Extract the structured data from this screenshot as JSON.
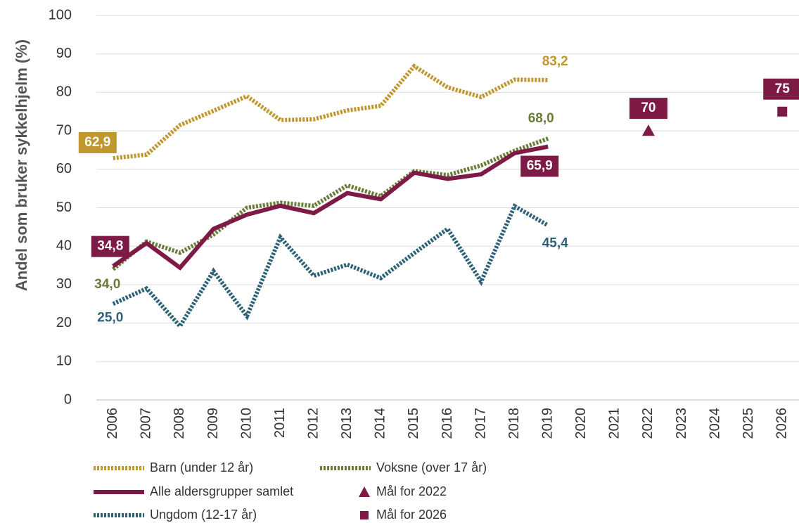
{
  "chart_data": {
    "type": "line",
    "y_label": "Andel som bruker sykkelhjelm (%)",
    "categories": [
      "2006",
      "2007",
      "2008",
      "2009",
      "2010",
      "2011",
      "2012",
      "2013",
      "2014",
      "2015",
      "2016",
      "2017",
      "2018",
      "2019",
      "2020",
      "2021",
      "2022",
      "2023",
      "2024",
      "2025",
      "2026"
    ],
    "ylim": [
      0,
      100
    ],
    "yticks": [
      0,
      10,
      20,
      30,
      40,
      50,
      60,
      70,
      80,
      90,
      100
    ],
    "grid": true,
    "series": [
      {
        "name": "Barn (under 12 år)",
        "color": "#c0962e",
        "style": "dotted",
        "values": [
          62.9,
          63.8,
          71.5,
          75.2,
          79,
          72.8,
          73,
          75.3,
          76.5,
          86.8,
          81.3,
          78.8,
          83.3,
          83.2,
          null,
          null,
          null,
          null,
          null,
          null,
          null
        ],
        "value_labels": [
          "62,9",
          null,
          null,
          null,
          null,
          null,
          null,
          null,
          null,
          null,
          null,
          null,
          null,
          "83,2",
          null,
          null,
          null,
          null,
          null,
          null,
          null
        ]
      },
      {
        "name": "Voksne (over 17 år)",
        "color": "#6b7c3a",
        "style": "dotted",
        "values": [
          34.0,
          41.2,
          38.3,
          43,
          50,
          51.3,
          50.5,
          55.8,
          53,
          59.5,
          58.5,
          61,
          64.8,
          68.0,
          null,
          null,
          null,
          null,
          null,
          null,
          null
        ],
        "value_labels": [
          "34,0",
          null,
          null,
          null,
          null,
          null,
          null,
          null,
          null,
          null,
          null,
          null,
          null,
          "68,0",
          null,
          null,
          null,
          null,
          null,
          null,
          null
        ]
      },
      {
        "name": "Alle aldersgrupper samlet",
        "color": "#7d1a45",
        "style": "solid",
        "values": [
          34.8,
          40.8,
          34.4,
          44.5,
          48.2,
          50.5,
          48.6,
          53.8,
          52.2,
          59.1,
          57.5,
          58.7,
          64.2,
          65.9,
          null,
          null,
          null,
          null,
          null,
          null,
          null
        ],
        "value_labels": [
          "34,8",
          null,
          null,
          null,
          null,
          null,
          null,
          null,
          null,
          null,
          null,
          null,
          null,
          "65,9",
          null,
          null,
          null,
          null,
          null,
          null,
          null
        ]
      },
      {
        "name": "Mål for 2022",
        "color": "#7d1a45",
        "marker": "triangle",
        "values": [
          null,
          null,
          null,
          null,
          null,
          null,
          null,
          null,
          null,
          null,
          null,
          null,
          null,
          null,
          null,
          null,
          70,
          null,
          null,
          null,
          null
        ]
      },
      {
        "name": "Ungdom (12-17 år)",
        "color": "#2c6277",
        "style": "dotted",
        "values": [
          25.0,
          29,
          19.2,
          33.5,
          21.8,
          42.3,
          32.3,
          35.2,
          31.7,
          38.2,
          44.5,
          30.8,
          50.4,
          45.4,
          null,
          null,
          null,
          null,
          null,
          null,
          null
        ],
        "value_labels": [
          "25,0",
          null,
          null,
          null,
          null,
          null,
          null,
          null,
          null,
          null,
          null,
          null,
          null,
          "45,4",
          null,
          null,
          null,
          null,
          null,
          null,
          null
        ]
      },
      {
        "name": "Mål for 2026",
        "color": "#7d1a45",
        "marker": "square",
        "values": [
          null,
          null,
          null,
          null,
          null,
          null,
          null,
          null,
          null,
          null,
          null,
          null,
          null,
          null,
          null,
          null,
          null,
          null,
          null,
          null,
          75
        ]
      }
    ]
  }
}
